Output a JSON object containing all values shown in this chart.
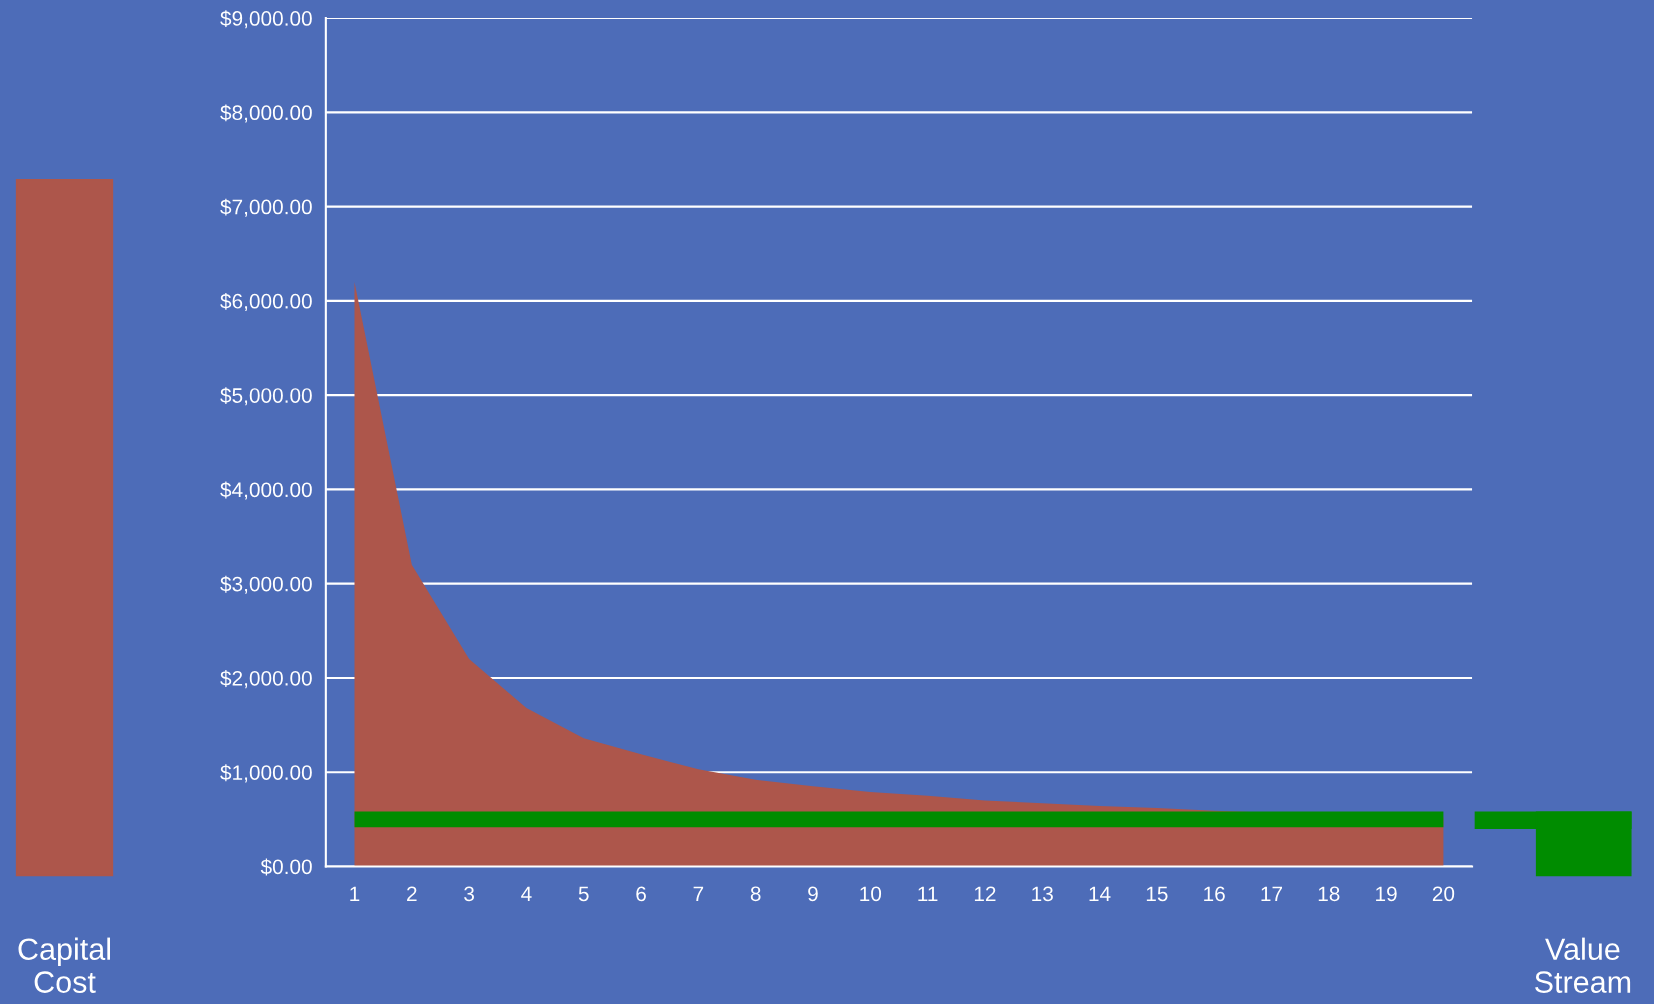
{
  "chart_data": {
    "type": "area",
    "categories": [
      "1",
      "2",
      "3",
      "4",
      "5",
      "6",
      "7",
      "8",
      "9",
      "10",
      "11",
      "12",
      "13",
      "14",
      "15",
      "16",
      "17",
      "18",
      "19",
      "20"
    ],
    "series": [
      {
        "color": "#ad564b",
        "values": [
          6200,
          3200,
          2200,
          1680,
          1360,
          1190,
          1030,
          920,
          850,
          790,
          750,
          700,
          670,
          640,
          620,
          590,
          570,
          550,
          530,
          520
        ]
      },
      {
        "type": "line",
        "color": "#008c00",
        "values": [
          500,
          500,
          500,
          500,
          500,
          500,
          500,
          500,
          500,
          500,
          500,
          500,
          500,
          500,
          500,
          500,
          500,
          500,
          500,
          500
        ]
      }
    ],
    "ylim": [
      0,
      9000
    ],
    "yticks": [
      {
        "value": 0,
        "label": "$0.00"
      },
      {
        "value": 1000,
        "label": "$1,000.00"
      },
      {
        "value": 2000,
        "label": "$2,000.00"
      },
      {
        "value": 3000,
        "label": "$3,000.00"
      },
      {
        "value": 4000,
        "label": "$4,000.00"
      },
      {
        "value": 5000,
        "label": "$5,000.00"
      },
      {
        "value": 6000,
        "label": "$6,000.00"
      },
      {
        "value": 7000,
        "label": "$7,000.00"
      },
      {
        "value": 8000,
        "label": "$8,000.00"
      },
      {
        "value": 9000,
        "label": "$9,000.00"
      }
    ],
    "grid": "y",
    "annotations": [
      "Capital\nCost",
      "Value\nStream"
    ]
  }
}
